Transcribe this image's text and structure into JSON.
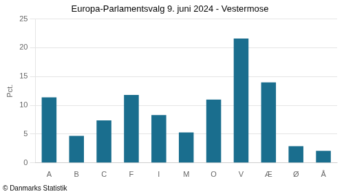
{
  "chart_data": {
    "type": "bar",
    "title": "Europa-Parlamentsvalg 9. juni 2024 - Vestermose",
    "categories": [
      "A",
      "B",
      "C",
      "F",
      "I",
      "M",
      "O",
      "V",
      "Æ",
      "Ø",
      "Å"
    ],
    "values": [
      11.4,
      4.7,
      7.4,
      11.8,
      8.3,
      5.3,
      11.0,
      21.6,
      14.0,
      2.9,
      2.1
    ],
    "color": "#1a6e8e",
    "ylabel": "Pct.",
    "ylim": [
      0,
      25
    ],
    "yticks": [
      0,
      5,
      10,
      15,
      20,
      25
    ],
    "grid": true,
    "footer": "© Danmarks Statistik"
  }
}
